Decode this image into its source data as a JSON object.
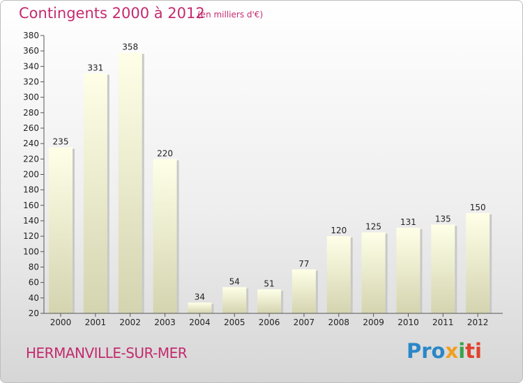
{
  "header": {
    "title": "Contingents 2000 à 2012",
    "subtitle": "(en milliers d'€)"
  },
  "footer": {
    "location": "HERMANVILLE-SUR-MER",
    "logo": [
      "Pro",
      "x",
      "i",
      "ti"
    ]
  },
  "colors": {
    "title": "#c42a6f",
    "bar_top": "#ffffe8",
    "bar_bottom": "#d4d4b0"
  },
  "chart_data": {
    "type": "bar",
    "title": "Contingents 2000 à 2012",
    "subtitle": "(en milliers d'€)",
    "categories": [
      "2000",
      "2001",
      "2002",
      "2003",
      "2004",
      "2005",
      "2006",
      "2007",
      "2008",
      "2009",
      "2010",
      "2011",
      "2012"
    ],
    "values": [
      235,
      331,
      358,
      220,
      34,
      54,
      51,
      77,
      120,
      125,
      131,
      135,
      150
    ],
    "xlabel": "",
    "ylabel": "",
    "ylim": [
      20,
      380
    ],
    "yticks": [
      20,
      40,
      60,
      80,
      100,
      120,
      140,
      160,
      180,
      200,
      220,
      240,
      260,
      280,
      300,
      320,
      340,
      360,
      380
    ],
    "grid": false,
    "legend": "none"
  }
}
